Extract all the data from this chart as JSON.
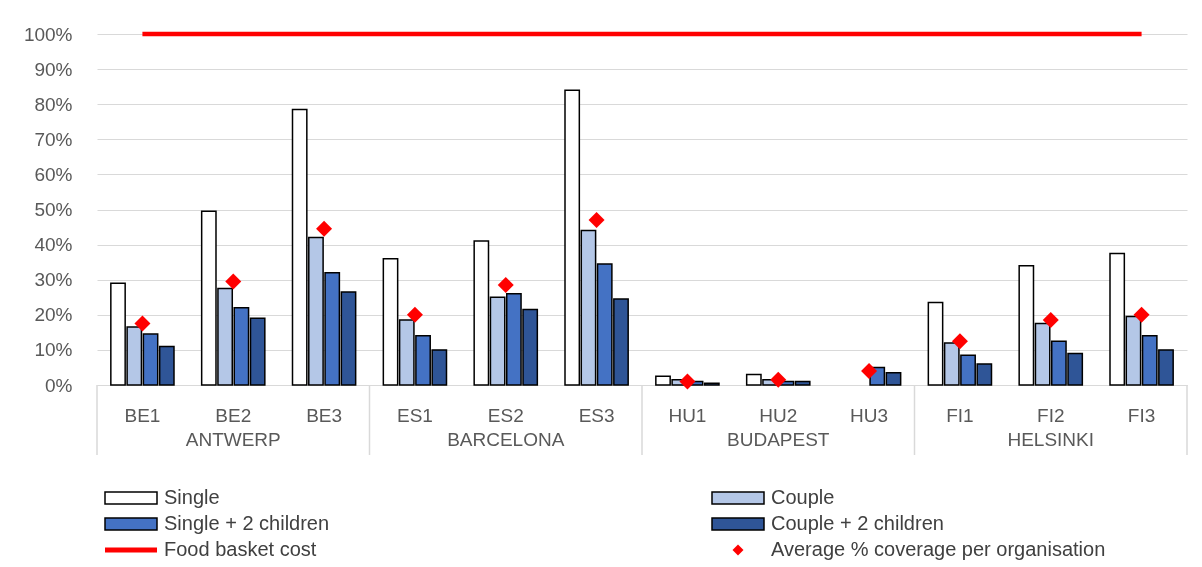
{
  "chart_data": {
    "type": "bar",
    "categories": [
      "BE1",
      "BE2",
      "BE3",
      "ES1",
      "ES2",
      "ES3",
      "HU1",
      "HU2",
      "HU3",
      "FI1",
      "FI2",
      "FI3"
    ],
    "series": [
      {
        "name": "Single",
        "color": "#ffffff",
        "values": [
          29,
          49.5,
          78.5,
          36,
          41,
          84,
          2.5,
          3,
          null,
          23.5,
          34,
          37.5
        ]
      },
      {
        "name": "Couple",
        "color": "#b4c7e7",
        "values": [
          16.5,
          27.5,
          42,
          18.5,
          25,
          44,
          1.5,
          1.5,
          null,
          12,
          17.5,
          19.5
        ]
      },
      {
        "name": "Single + 2 children",
        "color": "#4472c4",
        "values": [
          14.5,
          22,
          32,
          14,
          26,
          34.5,
          1,
          1,
          5,
          8.5,
          12.5,
          14
        ]
      },
      {
        "name": "Couple + 2 children",
        "color": "#2f5597",
        "values": [
          11,
          19,
          26.5,
          10,
          21.5,
          24.5,
          0.5,
          1,
          3.5,
          6,
          9,
          10
        ]
      },
      {
        "name": "Food basket cost",
        "type": "line",
        "color": "#ff0000",
        "values": [
          100,
          100,
          100,
          100,
          100,
          100,
          100,
          100,
          100,
          100,
          100,
          100
        ]
      },
      {
        "name": "Average % coverage per organisation",
        "type": "scatter",
        "marker": "diamond",
        "color": "#ff0000",
        "values": [
          17.5,
          29.5,
          44.5,
          20,
          28.5,
          47,
          1,
          1.5,
          4,
          12.5,
          18.5,
          20
        ]
      }
    ],
    "ylim": [
      0,
      100
    ],
    "yticks": [
      {
        "value": 0,
        "label": "0%"
      },
      {
        "value": 10,
        "label": "10%"
      },
      {
        "value": 20,
        "label": "20%"
      },
      {
        "value": 30,
        "label": "30%"
      },
      {
        "value": 40,
        "label": "40%"
      },
      {
        "value": 50,
        "label": "50%"
      },
      {
        "value": 60,
        "label": "60%"
      },
      {
        "value": 70,
        "label": "70%"
      },
      {
        "value": 80,
        "label": "80%"
      },
      {
        "value": 90,
        "label": "90%"
      },
      {
        "value": 100,
        "label": "100%"
      }
    ],
    "grid": "y",
    "legend": "bottom",
    "annotations": [
      "ANTWERP",
      "BARCELONA",
      "BUDAPEST",
      "HELSINKI"
    ]
  }
}
